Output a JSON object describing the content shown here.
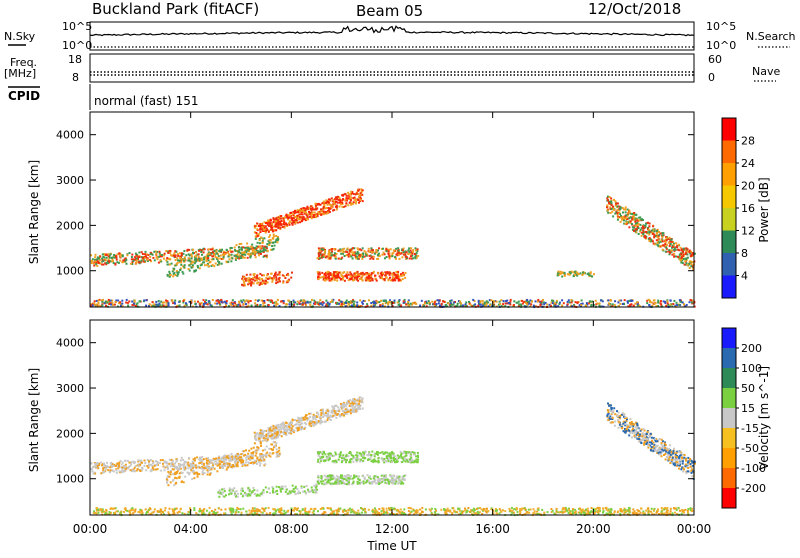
{
  "header": {
    "site": "Buckland Park (fitACF)",
    "beam": "Beam 05",
    "date": "12/Oct/2018"
  },
  "strips": {
    "nsky_label": "N.Sky",
    "nsky_ticks": [
      "10^5",
      "10^0"
    ],
    "nsearch_label": "N.Search",
    "nsearch_ticks": [
      "10^5",
      "10^0"
    ],
    "freq_label": "Freq.",
    "freq_unit": "[MHz]",
    "freq_ticks": [
      "18",
      "8"
    ],
    "nave_label": "Nave",
    "nave_ticks": [
      "60",
      "0"
    ],
    "cpid_label": "CPID",
    "cpid_value": "normal (fast) 151"
  },
  "chart_data": [
    {
      "type": "heatmap",
      "name": "power",
      "ylabel": "Slant Range [km]",
      "yticks": [
        1000,
        2000,
        3000,
        4000
      ],
      "ylim": [
        200,
        4500
      ],
      "xlim": [
        0,
        24
      ],
      "colorbar_label": "Power [dB]",
      "colorbar_ticks": [
        "28",
        "24",
        "20",
        "16",
        "12",
        "8",
        "4"
      ],
      "colorbar_colors": [
        "#ff0000",
        "#ff6a00",
        "#ffa000",
        "#f5c800",
        "#c8d020",
        "#2e8b57",
        "#3060b0",
        "#1a1aff"
      ],
      "colors": {
        "ground_band": "#e8a020",
        "echo_low": "#3c9a50",
        "echo_mid": "#f0a020",
        "echo_high": "#ee3010",
        "echo_peak": "#ff2000"
      }
    },
    {
      "type": "heatmap",
      "name": "velocity",
      "ylabel": "Slant Range [km]",
      "yticks": [
        1000,
        2000,
        3000,
        4000
      ],
      "ylim": [
        200,
        4500
      ],
      "xlim": [
        0,
        24
      ],
      "xticks": [
        "00:00",
        "04:00",
        "08:00",
        "12:00",
        "16:00",
        "20:00",
        "00:00"
      ],
      "xlabel": "Time UT",
      "colorbar_label": "Velocity [m s^-1]",
      "colorbar_ticks": [
        "200",
        "100",
        "50",
        "15",
        "-15",
        "-50",
        "-100",
        "-200"
      ],
      "colorbar_colors": [
        "#1a1aff",
        "#2a6ab0",
        "#2e8b57",
        "#7ad040",
        "#c8c8c8",
        "#f5c020",
        "#ffa000",
        "#ff6a00",
        "#ff0000"
      ],
      "colors": {
        "ground_band": "#f0b030",
        "echo_grey": "#c8c8c8",
        "echo_green": "#7ad040",
        "echo_orange": "#f0a020"
      }
    }
  ]
}
